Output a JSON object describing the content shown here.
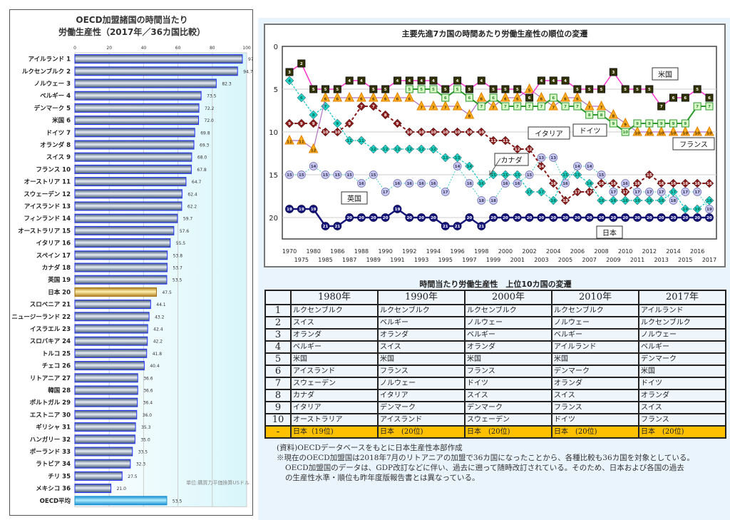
{
  "bar_chart": {
    "type": "bar",
    "orientation": "horizontal",
    "title_line1": "OECD加盟諸国の時間当たり",
    "title_line2": "労働生産性（2017年／36カ国比較）",
    "unit": "単位:購買力平価換算USドル",
    "xlim": [
      0,
      100
    ],
    "xticks": [
      "0",
      "20",
      "40",
      "60",
      "80",
      "100"
    ],
    "grid": true,
    "highlight_color": "#e0b040",
    "bar_color": "#6f86a6",
    "avg_color": "#4fc0f0",
    "categories": [
      "アイルランド 1",
      "ルクセンブルク 2",
      "ノルウェー 3",
      "ベルギー 4",
      "デンマーク 5",
      "米国 6",
      "ドイツ 7",
      "オランダ 8",
      "スイス 9",
      "フランス 10",
      "オーストリア 11",
      "スウェーデン 12",
      "アイスランド 13",
      "フィンランド 14",
      "オーストラリア 15",
      "イタリア 16",
      "スペイン 17",
      "カナダ 18",
      "英国 19",
      "日本 20",
      "スロベニア 21",
      "ニュージーランド 22",
      "イスラエル 23",
      "スロバキア 24",
      "トルコ 25",
      "チェコ 26",
      "リトアニア 27",
      "韓国 28",
      "ポルトガル 29",
      "エストニア 30",
      "ギリシャ 31",
      "ハンガリー 32",
      "ポーランド 33",
      "ラトビア 34",
      "チリ 35",
      "メキシコ 36",
      "OECD平均"
    ],
    "values": [
      97.5,
      94.7,
      82.3,
      73.5,
      72.2,
      72.0,
      69.8,
      69.3,
      68.0,
      67.8,
      64.7,
      62.4,
      62.2,
      59.7,
      57.6,
      55.5,
      53.8,
      53.7,
      53.5,
      47.5,
      44.1,
      43.2,
      42.4,
      42.2,
      41.8,
      40.4,
      36.6,
      36.6,
      36.4,
      36.0,
      35.3,
      35.0,
      33.5,
      32.3,
      27.5,
      21.0,
      53.5
    ],
    "labels": [
      "97.5",
      "94.7",
      "82.3",
      "73.5",
      "72.2",
      "72.0",
      "69.8",
      "69.3",
      "68.0",
      "67.8",
      "64.7",
      "62.4",
      "62.2",
      "59.7",
      "57.6",
      "55.5",
      "53.8",
      "53.7",
      "53.5",
      "47.5",
      "44.1",
      "43.2",
      "42.4",
      "42.2",
      "41.8",
      "40.4",
      "36.6",
      "36.6",
      "36.4",
      "36.0",
      "35.3",
      "35.0",
      "33.5",
      "32.3",
      "27.5",
      "21.0",
      "53.5"
    ]
  },
  "line_chart": {
    "type": "line",
    "title": "主要先進7カ国の時間あたり労働生産性の順位の変遷",
    "yaxis_reversed": true,
    "ylim": [
      0,
      22.5
    ],
    "yticks": [
      "0",
      "5",
      "10",
      "15",
      "20"
    ],
    "grid": true,
    "x": [
      "1970",
      "1975",
      "1980",
      "1985",
      "1986",
      "1987",
      "1988",
      "1989",
      "1990",
      "1991",
      "1992",
      "1993",
      "1994",
      "1995",
      "1996",
      "1997",
      "1998",
      "1999",
      "2000",
      "2001",
      "2002",
      "2003",
      "2004",
      "2005",
      "2006",
      "2007",
      "2008",
      "2009",
      "2010",
      "2011",
      "2012",
      "2013",
      "2014",
      "2015",
      "2016",
      "2017"
    ],
    "series": [
      {
        "name": "米国",
        "color": "#ff33cc",
        "marker": "square",
        "values": [
          3,
          2,
          5,
          5,
          5,
          4,
          4,
          5,
          5,
          4,
          4,
          4,
          4,
          5,
          4,
          5,
          4,
          5,
          5,
          5,
          6,
          4,
          4,
          4,
          5,
          5,
          5,
          3,
          5,
          5,
          5,
          7,
          6,
          6,
          5,
          6
        ]
      },
      {
        "name": "ドイツ",
        "color": "#2e9a2e",
        "marker": "square-outline",
        "values": [
          null,
          null,
          null,
          null,
          null,
          null,
          null,
          null,
          null,
          null,
          5,
          5,
          5,
          6,
          5,
          6,
          7,
          6,
          7,
          7,
          7,
          7,
          6,
          7,
          7,
          8,
          8,
          9,
          10,
          9,
          9,
          9,
          9,
          9,
          7,
          7
        ]
      },
      {
        "name": "フランス",
        "color": "#b070c0",
        "marker": "triangle",
        "values": [
          11,
          11,
          12,
          6,
          6,
          6,
          6,
          6,
          6,
          6,
          6,
          7,
          7,
          7,
          7,
          8,
          6,
          7,
          6,
          6,
          5,
          6,
          7,
          6,
          6,
          7,
          7,
          8,
          9,
          10,
          10,
          10,
          10,
          10,
          10,
          10
        ]
      },
      {
        "name": "イタリア",
        "color": "#8b1a1a",
        "marker": "diamond",
        "values": [
          9,
          9,
          9,
          10,
          10,
          9,
          7,
          7,
          8,
          9,
          10,
          10,
          10,
          10,
          10,
          10,
          10,
          11,
          11,
          12,
          12,
          14,
          16,
          18,
          17,
          17,
          16,
          16,
          17,
          16,
          15,
          16,
          16,
          16,
          16,
          16
        ]
      },
      {
        "name": "カナダ",
        "color": "#20c8c8",
        "marker": "diamond",
        "values": [
          4,
          6,
          8,
          7,
          9,
          11,
          11,
          12,
          12,
          12,
          12,
          12,
          12,
          13,
          13,
          14,
          16,
          15,
          15,
          15,
          17,
          17,
          18,
          15,
          15,
          16,
          18,
          18,
          18,
          18,
          18,
          18,
          17,
          19,
          19,
          18
        ]
      },
      {
        "name": "英国",
        "color": "#b8b8e8",
        "marker": "circle",
        "values": [
          15,
          15,
          14,
          15,
          15,
          15,
          16,
          15,
          17,
          16,
          16,
          16,
          16,
          17,
          14,
          16,
          18,
          18,
          16,
          16,
          15,
          13,
          13,
          16,
          14,
          14,
          15,
          17,
          16,
          17,
          17,
          17,
          18,
          17,
          17,
          19
        ]
      },
      {
        "name": "日本",
        "color": "#14147a",
        "marker": "circle",
        "values": [
          19,
          19,
          19,
          21,
          21,
          20,
          20,
          20,
          20,
          19,
          20,
          20,
          20,
          21,
          21,
          20,
          21,
          20,
          20,
          20,
          20,
          20,
          20,
          20,
          20,
          20,
          20,
          20,
          20,
          20,
          20,
          20,
          20,
          20,
          20,
          20
        ]
      }
    ]
  },
  "table": {
    "title": "時間当たり労働生産性　上位10カ国の変遷",
    "headers": [
      "",
      "1980年",
      "1990年",
      "2000年",
      "2010年",
      "2017年"
    ],
    "rows": [
      [
        "1",
        "ルクセンブルク",
        "ルクセンブルク",
        "ルクセンブルク",
        "ルクセンブルク",
        "アイルランド"
      ],
      [
        "2",
        "スイス",
        "ベルギー",
        "ノルウェー",
        "ノルウェー",
        "ルクセンブルク"
      ],
      [
        "3",
        "オランダ",
        "オランダ",
        "ベルギー",
        "ベルギー",
        "ノルウェー"
      ],
      [
        "4",
        "ベルギー",
        "スイス",
        "オランダ",
        "アイルランド",
        "ベルギー"
      ],
      [
        "5",
        "米国",
        "米国",
        "米国",
        "米国",
        "デンマーク"
      ],
      [
        "6",
        "アイスランド",
        "フランス",
        "フランス",
        "デンマーク",
        "米国"
      ],
      [
        "7",
        "スウェーデン",
        "ノルウェー",
        "ドイツ",
        "オランダ",
        "ドイツ"
      ],
      [
        "8",
        "カナダ",
        "イタリア",
        "スイス",
        "スイス",
        "オランダ"
      ],
      [
        "9",
        "イタリア",
        "デンマーク",
        "デンマーク",
        "フランス",
        "スイス"
      ],
      [
        "10",
        "オーストラリア",
        "アイスランド",
        "スウェーデン",
        "ドイツ",
        "フランス"
      ],
      [
        "-",
        "日本（19位)",
        "日本　(20位)",
        "日本　(20位)",
        "日本　(20位)",
        "日本　(20位)"
      ]
    ],
    "highlight_color": "#ffc000"
  },
  "notes": [
    "(資料)OECDデータベースをもとに日本生産性本部作成",
    "※現在のOECD加盟国は2018年7月のリトアニアの加盟で36カ国になったことから、各種比較も36カ国を対象としている。",
    "OECD加盟国のデータは、GDP改訂などに伴い、過去に遡って随時改訂されている。そのため、日本および各国の過去",
    "の生産性水準・順位も昨年度版報告書とは異なっている。"
  ]
}
